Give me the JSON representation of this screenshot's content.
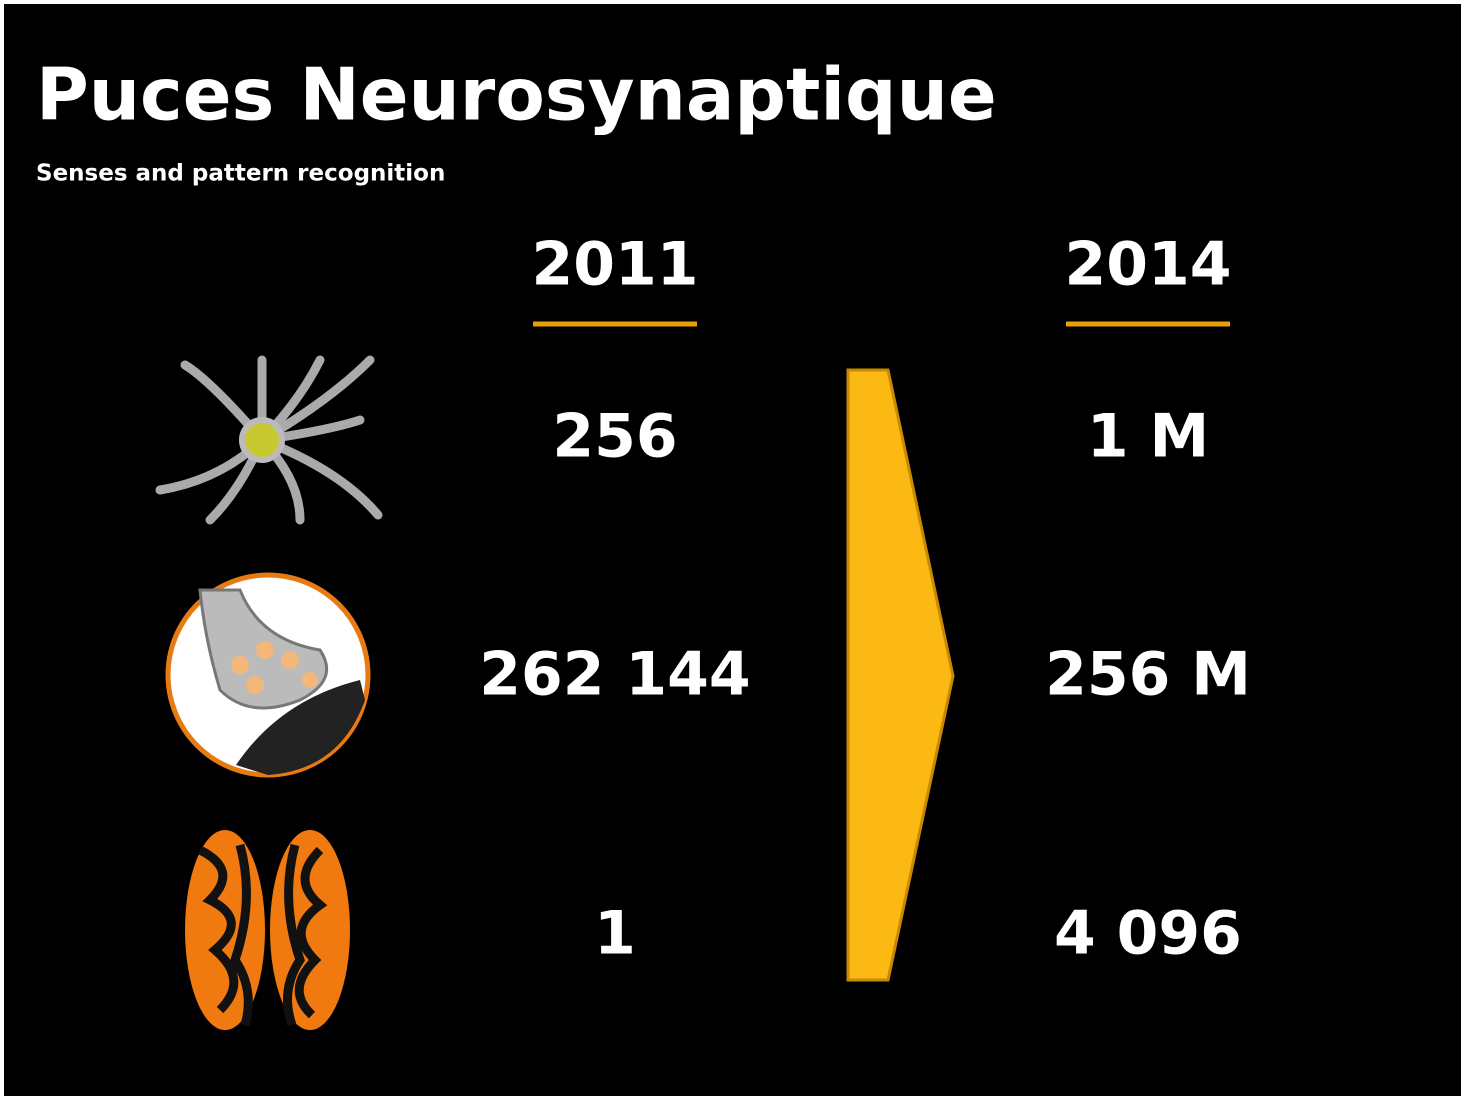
{
  "header": {
    "title": "Puces Neurosynaptique",
    "subtitle": "Senses and pattern recognition"
  },
  "table": {
    "columns": [
      "2011",
      "2014"
    ],
    "rows": [
      [
        "256",
        "1 M"
      ],
      [
        "262 144",
        "256 M"
      ],
      [
        "1",
        "4 096"
      ]
    ]
  }
}
